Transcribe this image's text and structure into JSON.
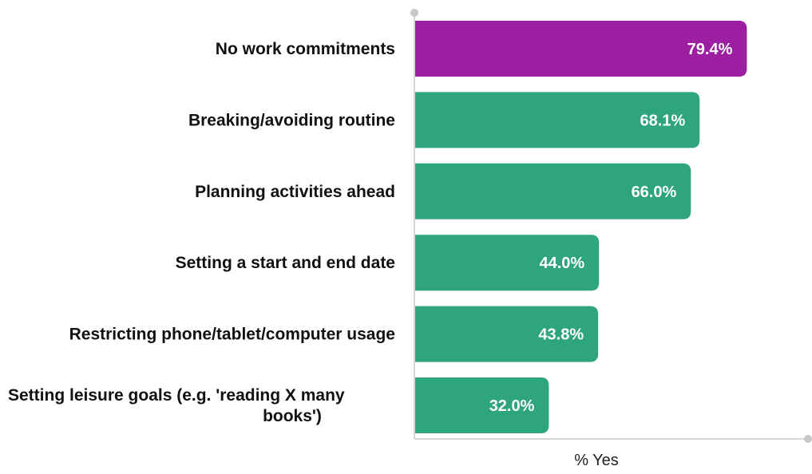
{
  "chart_data": {
    "type": "bar",
    "orientation": "horizontal",
    "categories": [
      "No work commitments",
      "Breaking/avoiding routine",
      "Planning activities ahead",
      "Setting a start and end date",
      "Restricting phone/tablet/computer usage",
      "Setting leisure goals (e.g. 'reading X many books')"
    ],
    "values": [
      79.4,
      68.1,
      66.0,
      44.0,
      43.8,
      32.0
    ],
    "value_labels": [
      "79.4%",
      "68.1%",
      "66.0%",
      "44.0%",
      "43.8%",
      "32.0%"
    ],
    "xlabel": "% Yes",
    "xlim": [
      0,
      95
    ],
    "grid": false,
    "colors": {
      "highlight": "#9b1fa0",
      "default": "#2ea57a",
      "axis": "#c8c8c8"
    },
    "highlight_index": 0
  }
}
